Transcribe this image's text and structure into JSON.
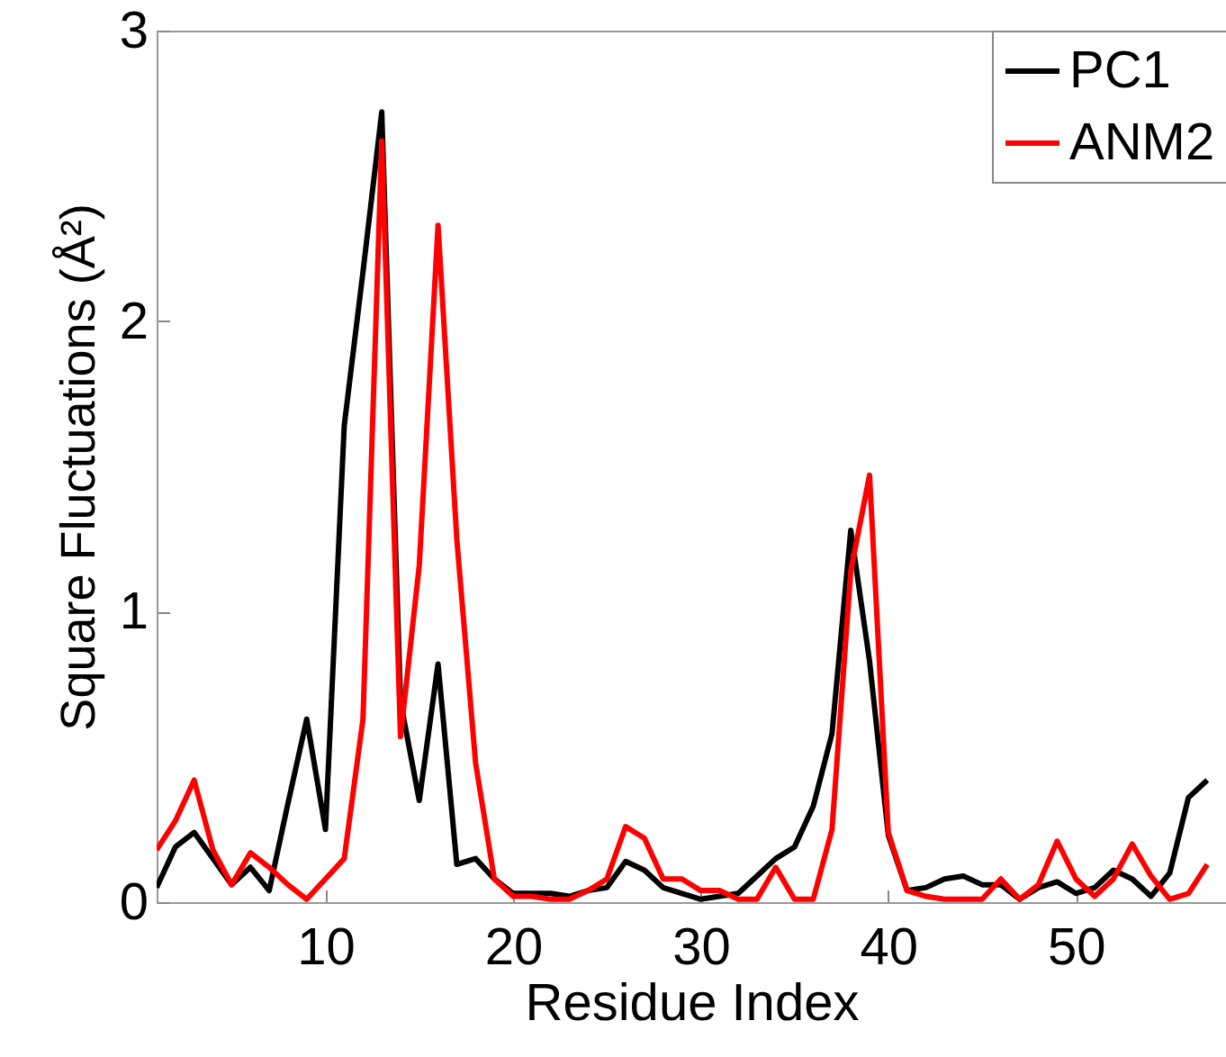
{
  "chart_data": {
    "type": "line",
    "xlabel": "Residue Index",
    "ylabel": "Square Fluctuations (Å²)",
    "x": [
      1,
      2,
      3,
      4,
      5,
      6,
      7,
      8,
      9,
      10,
      11,
      12,
      13,
      14,
      15,
      16,
      17,
      18,
      19,
      20,
      21,
      22,
      23,
      24,
      25,
      26,
      27,
      28,
      29,
      30,
      31,
      32,
      33,
      34,
      35,
      36,
      37,
      38,
      39,
      40,
      41,
      42,
      43,
      44,
      45,
      46,
      47,
      48,
      49,
      50,
      51,
      52,
      53,
      54,
      55,
      56,
      57
    ],
    "xlim": [
      1,
      58
    ],
    "xticks": [
      10,
      20,
      30,
      40,
      50
    ],
    "ylim": [
      0,
      3
    ],
    "yticks": [
      0,
      1,
      2,
      3
    ],
    "grid": false,
    "legend": "top right",
    "line_style": "solid",
    "marker": "none",
    "series": [
      {
        "name": "PC1",
        "color": "#000000",
        "values": [
          0.05,
          0.19,
          0.24,
          0.15,
          0.06,
          0.12,
          0.04,
          0.34,
          0.63,
          0.25,
          1.64,
          2.17,
          2.72,
          0.69,
          0.35,
          0.82,
          0.13,
          0.15,
          0.08,
          0.03,
          0.03,
          0.03,
          0.02,
          0.04,
          0.05,
          0.14,
          0.11,
          0.05,
          0.03,
          0.01,
          0.02,
          0.03,
          0.09,
          0.15,
          0.19,
          0.33,
          0.58,
          1.28,
          0.83,
          0.23,
          0.04,
          0.05,
          0.08,
          0.09,
          0.06,
          0.06,
          0.01,
          0.05,
          0.07,
          0.03,
          0.05,
          0.11,
          0.08,
          0.02,
          0.1,
          0.36,
          0.42
        ]
      },
      {
        "name": "ANM2",
        "color": "#ff0000",
        "values": [
          0.18,
          0.28,
          0.42,
          0.18,
          0.06,
          0.17,
          0.12,
          0.06,
          0.01,
          0.08,
          0.15,
          0.63,
          2.62,
          0.57,
          1.16,
          2.33,
          1.25,
          0.48,
          0.08,
          0.02,
          0.02,
          0.01,
          0.01,
          0.04,
          0.08,
          0.26,
          0.22,
          0.08,
          0.08,
          0.04,
          0.04,
          0.01,
          0.01,
          0.12,
          0.01,
          0.01,
          0.25,
          1.14,
          1.47,
          0.24,
          0.04,
          0.02,
          0.01,
          0.01,
          0.01,
          0.08,
          0.01,
          0.06,
          0.21,
          0.08,
          0.02,
          0.08,
          0.2,
          0.09,
          0.01,
          0.03,
          0.13
        ]
      }
    ]
  }
}
